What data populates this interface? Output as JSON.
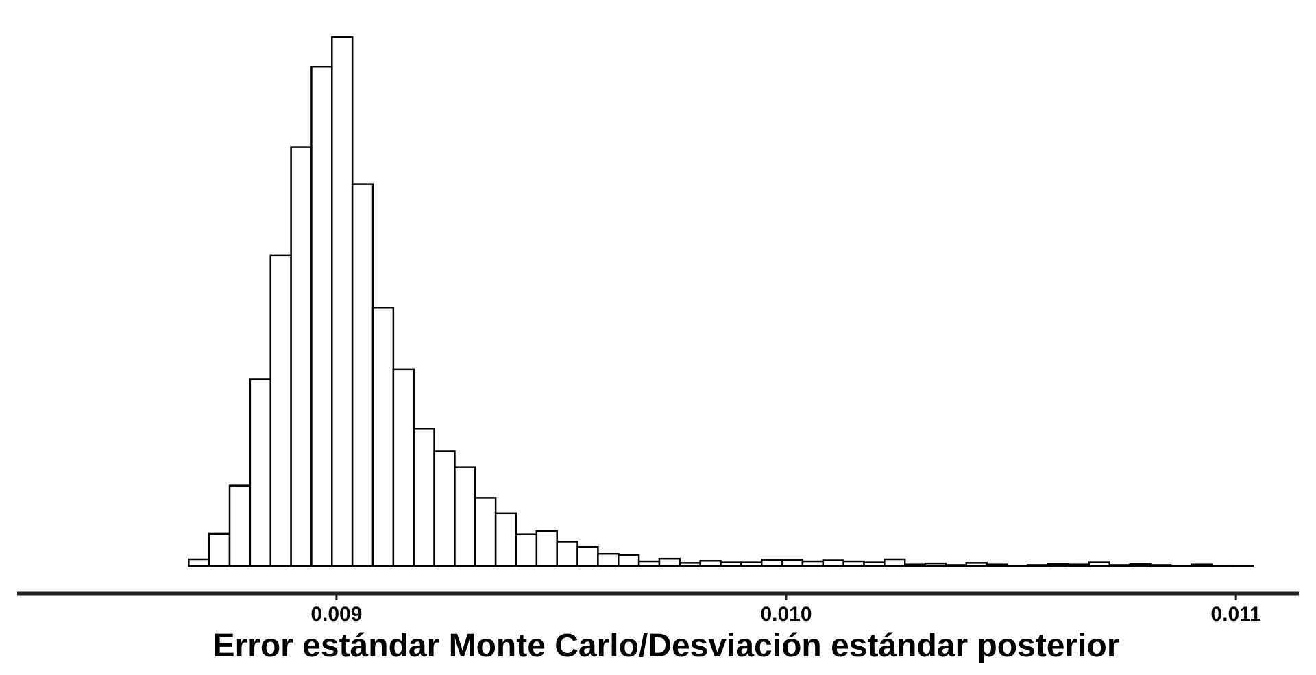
{
  "chart_data": {
    "type": "bar",
    "subtype": "histogram",
    "title": "",
    "xlabel": "Error estándar Monte Carlo/Desviación estándar posterior",
    "ylabel": "",
    "xlim": [
      0.00829,
      0.01114
    ],
    "ylim": [
      0,
      1
    ],
    "grid": false,
    "legend": "none",
    "x_ticks": [
      {
        "value": 0.009,
        "label": "0.009"
      },
      {
        "value": 0.01,
        "label": "0.010"
      },
      {
        "value": 0.011,
        "label": "0.011"
      }
    ],
    "bin_start": 0.008353,
    "bin_width": 4.55e-05,
    "values": [
      0,
      0,
      0,
      0,
      0,
      0,
      0,
      0.013,
      0.061,
      0.152,
      0.353,
      0.587,
      0.792,
      0.944,
      1.0,
      0.722,
      0.488,
      0.372,
      0.26,
      0.217,
      0.187,
      0.129,
      0.1,
      0.06,
      0.066,
      0.046,
      0.036,
      0.023,
      0.021,
      0.009,
      0.014,
      0.006,
      0.01,
      0.007,
      0.007,
      0.012,
      0.012,
      0.009,
      0.011,
      0.009,
      0.007,
      0.013,
      0.003,
      0.005,
      0.002,
      0.006,
      0.003,
      0.001,
      0.002,
      0.004,
      0.003,
      0.007,
      0.002,
      0.004,
      0.002,
      0.001,
      0.003,
      0.001,
      0.001
    ],
    "colors": {
      "bar_fill": "#ffffff",
      "bar_stroke": "#000000",
      "axis": "#222222",
      "text": "#000000"
    }
  }
}
